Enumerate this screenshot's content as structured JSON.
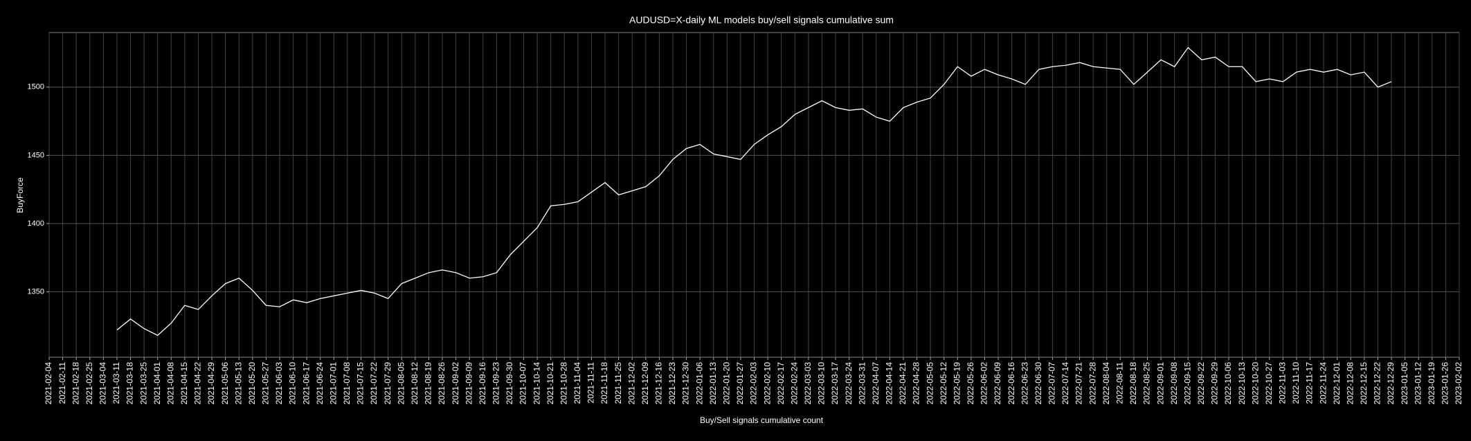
{
  "chart_data": {
    "type": "line",
    "title": "AUDUSD=X-daily ML models buy/sell signals cumulative sum",
    "x_label": "Buy/Sell signals cumulative count",
    "y_label": "BuyForce",
    "color": "#ffffff",
    "grid": true,
    "xlim": [
      "2021-02-04",
      "2023-02-02"
    ],
    "ylim": [
      1302,
      1540
    ],
    "yticks": [
      1350,
      1400,
      1450,
      1500
    ],
    "xticks": [
      "2021-02-04",
      "2021-02-11",
      "2021-02-18",
      "2021-02-25",
      "2021-03-04",
      "2021-03-11",
      "2021-03-18",
      "2021-03-25",
      "2021-04-01",
      "2021-04-08",
      "2021-04-15",
      "2021-04-22",
      "2021-04-29",
      "2021-05-06",
      "2021-05-13",
      "2021-05-20",
      "2021-05-27",
      "2021-06-03",
      "2021-06-10",
      "2021-06-17",
      "2021-06-24",
      "2021-07-01",
      "2021-07-08",
      "2021-07-15",
      "2021-07-22",
      "2021-07-29",
      "2021-08-05",
      "2021-08-12",
      "2021-08-19",
      "2021-08-26",
      "2021-09-02",
      "2021-09-09",
      "2021-09-16",
      "2021-09-23",
      "2021-09-30",
      "2021-10-07",
      "2021-10-14",
      "2021-10-21",
      "2021-10-28",
      "2021-11-04",
      "2021-11-11",
      "2021-11-18",
      "2021-11-25",
      "2021-12-02",
      "2021-12-09",
      "2021-12-16",
      "2021-12-23",
      "2021-12-30",
      "2022-01-06",
      "2022-01-13",
      "2022-01-20",
      "2022-01-27",
      "2022-02-03",
      "2022-02-10",
      "2022-02-17",
      "2022-02-24",
      "2022-03-03",
      "2022-03-10",
      "2022-03-17",
      "2022-03-24",
      "2022-03-31",
      "2022-04-07",
      "2022-04-14",
      "2022-04-21",
      "2022-04-28",
      "2022-05-05",
      "2022-05-12",
      "2022-05-19",
      "2022-05-26",
      "2022-06-02",
      "2022-06-09",
      "2022-06-16",
      "2022-06-23",
      "2022-06-30",
      "2022-07-07",
      "2022-07-14",
      "2022-07-21",
      "2022-07-28",
      "2022-08-04",
      "2022-08-11",
      "2022-08-18",
      "2022-08-25",
      "2022-09-01",
      "2022-09-08",
      "2022-09-15",
      "2022-09-22",
      "2022-09-29",
      "2022-10-06",
      "2022-10-13",
      "2022-10-20",
      "2022-10-27",
      "2022-11-03",
      "2022-11-10",
      "2022-11-17",
      "2022-11-24",
      "2022-12-01",
      "2022-12-08",
      "2022-12-15",
      "2022-12-22",
      "2022-12-29",
      "2023-01-05",
      "2023-01-12",
      "2023-01-19",
      "2023-01-26",
      "2023-02-02"
    ],
    "x": [
      "2021-03-11",
      "2021-03-18",
      "2021-03-25",
      "2021-04-01",
      "2021-04-08",
      "2021-04-15",
      "2021-04-22",
      "2021-04-29",
      "2021-05-06",
      "2021-05-13",
      "2021-05-20",
      "2021-05-27",
      "2021-06-03",
      "2021-06-10",
      "2021-06-17",
      "2021-06-24",
      "2021-07-01",
      "2021-07-08",
      "2021-07-15",
      "2021-07-22",
      "2021-07-29",
      "2021-08-05",
      "2021-08-12",
      "2021-08-19",
      "2021-08-26",
      "2021-09-02",
      "2021-09-09",
      "2021-09-16",
      "2021-09-23",
      "2021-09-30",
      "2021-10-07",
      "2021-10-14",
      "2021-10-21",
      "2021-10-28",
      "2021-11-04",
      "2021-11-11",
      "2021-11-18",
      "2021-11-25",
      "2021-12-02",
      "2021-12-09",
      "2021-12-16",
      "2021-12-23",
      "2021-12-30",
      "2022-01-06",
      "2022-01-13",
      "2022-01-20",
      "2022-01-27",
      "2022-02-03",
      "2022-02-10",
      "2022-02-17",
      "2022-02-24",
      "2022-03-03",
      "2022-03-10",
      "2022-03-17",
      "2022-03-24",
      "2022-03-31",
      "2022-04-07",
      "2022-04-14",
      "2022-04-21",
      "2022-04-28",
      "2022-05-05",
      "2022-05-12",
      "2022-05-19",
      "2022-05-26",
      "2022-06-02",
      "2022-06-09",
      "2022-06-16",
      "2022-06-23",
      "2022-06-30",
      "2022-07-07",
      "2022-07-14",
      "2022-07-21",
      "2022-07-28",
      "2022-08-04",
      "2022-08-11",
      "2022-08-18",
      "2022-08-25",
      "2022-09-01",
      "2022-09-08",
      "2022-09-15",
      "2022-09-22",
      "2022-09-29",
      "2022-10-06",
      "2022-10-13",
      "2022-10-20",
      "2022-10-27",
      "2022-11-03",
      "2022-11-10",
      "2022-11-17",
      "2022-11-24",
      "2022-12-01",
      "2022-12-08",
      "2022-12-15",
      "2022-12-22",
      "2022-12-29"
    ],
    "values": [
      1322,
      1330,
      1323,
      1318,
      1327,
      1340,
      1337,
      1347,
      1356,
      1360,
      1351,
      1340,
      1339,
      1344,
      1342,
      1345,
      1347,
      1349,
      1351,
      1349,
      1345,
      1356,
      1360,
      1364,
      1366,
      1364,
      1360,
      1361,
      1364,
      1377,
      1387,
      1397,
      1413,
      1414,
      1416,
      1423,
      1430,
      1421,
      1424,
      1427,
      1435,
      1447,
      1455,
      1458,
      1451,
      1449,
      1447,
      1458,
      1465,
      1471,
      1480,
      1485,
      1490,
      1485,
      1483,
      1484,
      1478,
      1475,
      1485,
      1489,
      1492,
      1502,
      1515,
      1508,
      1513,
      1509,
      1506,
      1502,
      1513,
      1515,
      1516,
      1518,
      1515,
      1514,
      1513,
      1502,
      1511,
      1520,
      1515,
      1529,
      1520,
      1522,
      1515,
      1515,
      1504,
      1506,
      1504,
      1511,
      1513,
      1511,
      1513,
      1509,
      1511,
      1500,
      1504
    ]
  }
}
